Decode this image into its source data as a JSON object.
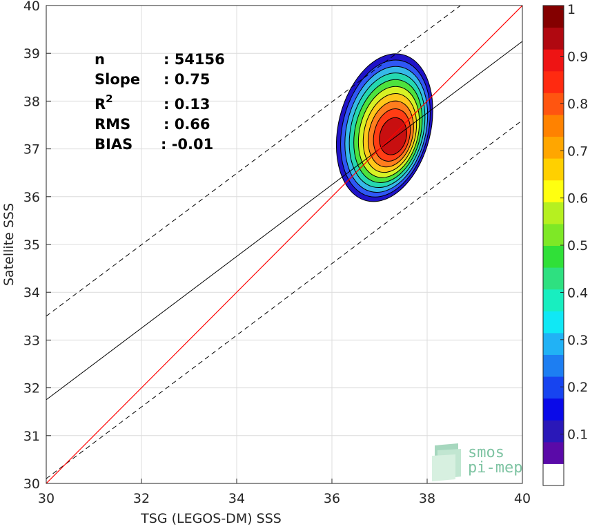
{
  "chart_data": {
    "type": "contour-scatter",
    "xlabel": "TSG (LEGOS-DM) SSS",
    "ylabel": "Satellite SSS",
    "xlim": [
      30,
      40
    ],
    "ylim": [
      30,
      40
    ],
    "xticks": [
      "30",
      "32",
      "34",
      "36",
      "38",
      "40"
    ],
    "yticks": [
      "30",
      "31",
      "32",
      "33",
      "34",
      "35",
      "36",
      "37",
      "38",
      "39",
      "40"
    ],
    "grid": true,
    "stats": [
      {
        "label": "n",
        "value": ": 54156"
      },
      {
        "label": "Slope",
        "value": ": 0.75"
      },
      {
        "label": "R",
        "sup": "2",
        "value": ": 0.13"
      },
      {
        "label": "RMS",
        "value": ": 0.66"
      },
      {
        "label": "BIAS",
        "value": ": -0.01"
      }
    ],
    "reference_line": {
      "x": [
        30,
        40
      ],
      "y": [
        30,
        40
      ],
      "color": "#ff0000"
    },
    "fit_line": {
      "x": [
        30,
        40
      ],
      "y": [
        31.75,
        39.25
      ],
      "color": "#000000"
    },
    "rms_lines": [
      {
        "x": [
          30,
          38.7
        ],
        "y": [
          33.5,
          40
        ]
      },
      {
        "x": [
          30,
          40
        ],
        "y": [
          30.1,
          37.6
        ]
      }
    ],
    "density_center": {
      "x": 37.3,
      "y": 37.25
    },
    "contour_levels": [
      0.05,
      0.15,
      0.25,
      0.35,
      0.45,
      0.55,
      0.65,
      0.75,
      0.85,
      0.95
    ],
    "contour_colors": [
      "#1f12c8",
      "#2f57f5",
      "#36b9e8",
      "#25d8b0",
      "#4ee23d",
      "#d7f225",
      "#ffc71a",
      "#ff7e1e",
      "#ff3d14",
      "#c80f10"
    ],
    "colorbar": {
      "range": [
        0,
        1
      ],
      "ticks": [
        "0.1",
        "0.2",
        "0.3",
        "0.4",
        "0.5",
        "0.6",
        "0.7",
        "0.8",
        "0.9",
        "1"
      ],
      "colors": [
        "#5a0aa8",
        "#2a18b8",
        "#0a0ae8",
        "#1744f0",
        "#1d7ef2",
        "#21b2f5",
        "#10e8f5",
        "#18eec0",
        "#2ee080",
        "#30e038",
        "#7ee826",
        "#b6f020",
        "#ffff10",
        "#ffd000",
        "#ffa600",
        "#ff8200",
        "#ff5510",
        "#ff2a10",
        "#ee1414",
        "#b00810",
        "#840000"
      ]
    },
    "watermark": {
      "line1": "smos",
      "line2": "pi-mep"
    }
  }
}
